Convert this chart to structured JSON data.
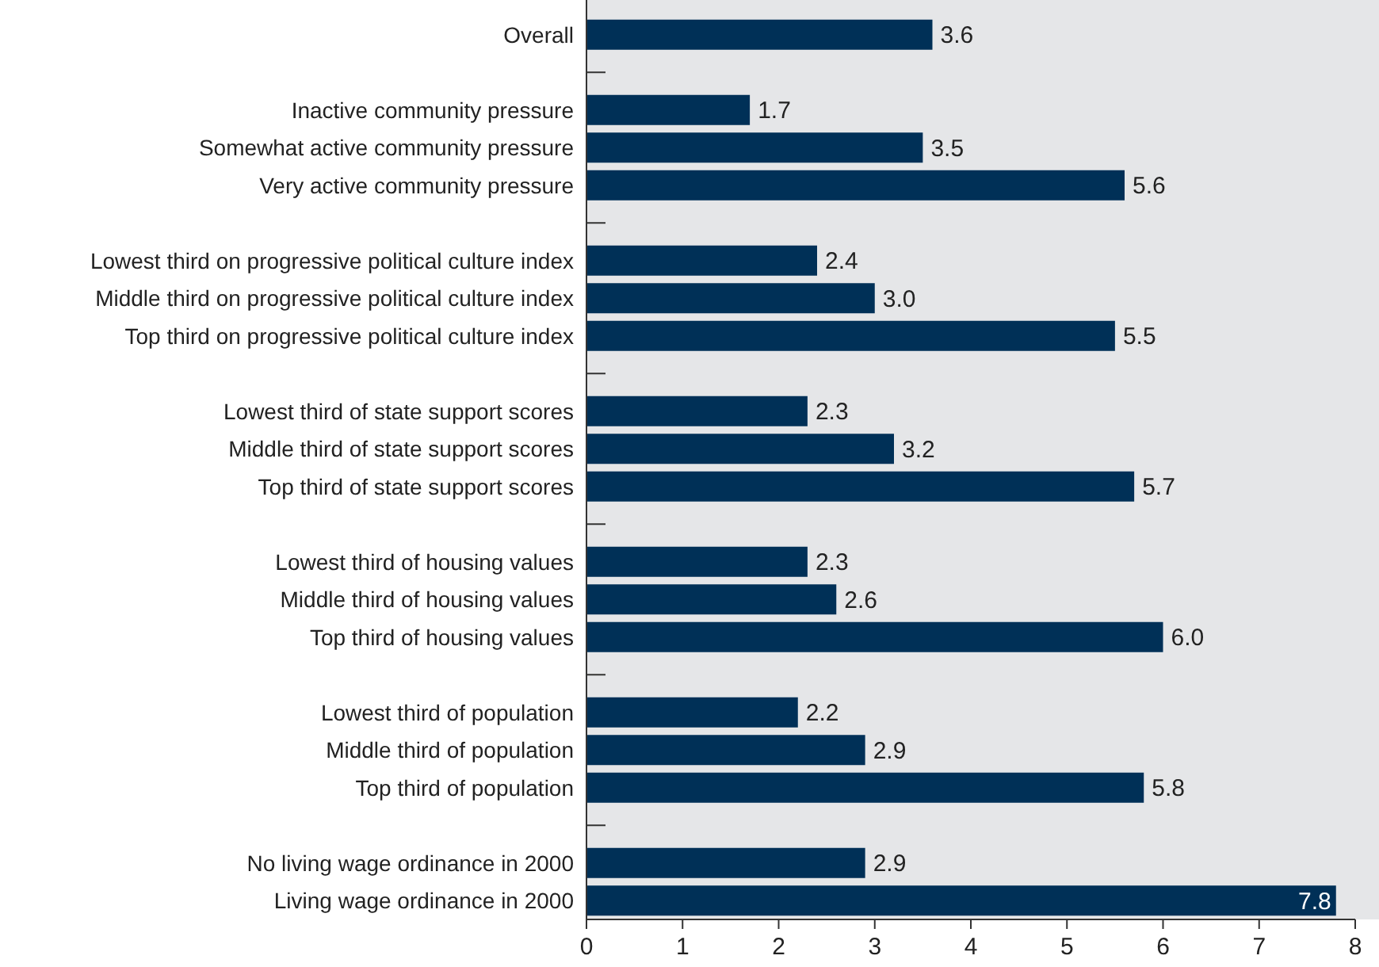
{
  "chart_data": {
    "type": "bar",
    "orientation": "horizontal",
    "categories": [
      "Overall",
      null,
      "Inactive community pressure",
      "Somewhat active community pressure",
      "Very active community pressure",
      null,
      "Lowest third on progressive political culture index",
      "Middle third on progressive political culture index",
      "Top third on progressive political culture index",
      null,
      "Lowest third of state support scores",
      "Middle third of state support scores",
      "Top third of state support scores",
      null,
      "Lowest third of housing values",
      "Middle third of housing values",
      "Top third of housing values",
      null,
      "Lowest third of population",
      "Middle third of population",
      "Top third of population",
      null,
      "No living wage ordinance in 2000",
      "Living wage ordinance in 2000"
    ],
    "values": [
      3.6,
      null,
      1.7,
      3.5,
      5.6,
      null,
      2.4,
      3.0,
      5.5,
      null,
      2.3,
      3.2,
      5.7,
      null,
      2.3,
      2.6,
      6.0,
      null,
      2.2,
      2.9,
      5.8,
      null,
      2.9,
      7.8
    ],
    "value_labels": [
      "3.6",
      null,
      "1.7",
      "3.5",
      "5.6",
      null,
      "2.4",
      "3.0",
      "5.5",
      null,
      "2.3",
      "3.2",
      "5.7",
      null,
      "2.3",
      "2.6",
      "6.0",
      null,
      "2.2",
      "2.9",
      "5.8",
      null,
      "2.9",
      "7.8"
    ],
    "color": "#003057",
    "xlim": [
      0,
      8
    ],
    "xticks": [
      0,
      1,
      2,
      3,
      4,
      5,
      6,
      7,
      8
    ],
    "grid": false
  }
}
